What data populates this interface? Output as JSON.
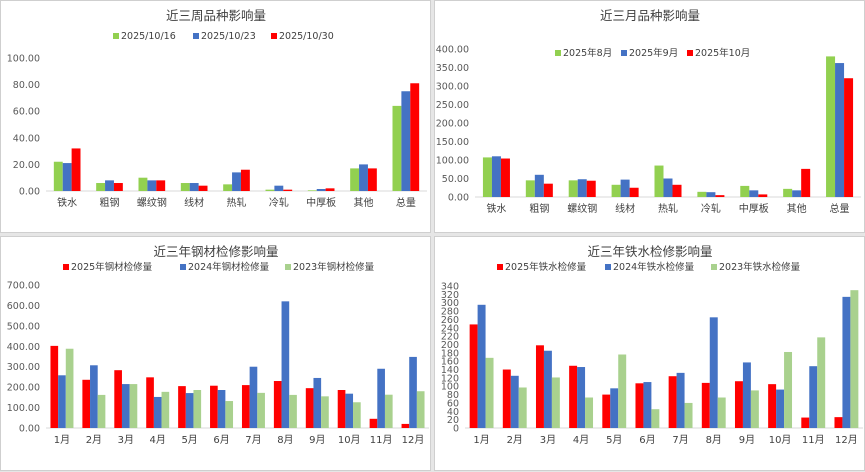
{
  "chart_data": [
    {
      "type": "bar",
      "title": "近三周品种影响量",
      "categories": [
        "铁水",
        "粗钢",
        "螺纹钢",
        "线材",
        "热轧",
        "冷轧",
        "中厚板",
        "其他",
        "总量"
      ],
      "series": [
        {
          "name": "2025/10/16",
          "color": "#92d050",
          "values": [
            22,
            6,
            10,
            6,
            5,
            1,
            0.5,
            17,
            64
          ]
        },
        {
          "name": "2025/10/23",
          "color": "#4472c4",
          "values": [
            21,
            8,
            8,
            6,
            14,
            4,
            1.5,
            20,
            75
          ]
        },
        {
          "name": "2025/10/30",
          "color": "#ff0000",
          "values": [
            32,
            6,
            8,
            4,
            16,
            1,
            2,
            17,
            81
          ]
        }
      ],
      "ylim": [
        0,
        100
      ],
      "yticks": [
        "0.00",
        "20.00",
        "40.00",
        "60.00",
        "80.00",
        "100.00"
      ],
      "legend": "top"
    },
    {
      "type": "bar",
      "title": "近三月品种影响量",
      "categories": [
        "铁水",
        "粗钢",
        "螺纹钢",
        "线材",
        "热轧",
        "冷轧",
        "中厚板",
        "其他",
        "总量"
      ],
      "series": [
        {
          "name": "2025年8月",
          "color": "#92d050",
          "values": [
            107,
            45,
            45,
            33,
            85,
            14,
            30,
            22,
            380
          ]
        },
        {
          "name": "2025年9月",
          "color": "#4472c4",
          "values": [
            110,
            60,
            48,
            47,
            50,
            13,
            18,
            18,
            362
          ]
        },
        {
          "name": "2025年10月",
          "color": "#ff0000",
          "values": [
            104,
            36,
            44,
            25,
            33,
            5,
            7,
            76,
            321
          ]
        }
      ],
      "ylim": [
        0,
        400
      ],
      "yticks": [
        "0.00",
        "50.00",
        "100.00",
        "150.00",
        "200.00",
        "250.00",
        "300.00",
        "350.00",
        "400.00"
      ],
      "legend": "top"
    },
    {
      "type": "bar",
      "title": "近三年钢材检修影响量",
      "categories": [
        "1月",
        "2月",
        "3月",
        "4月",
        "5月",
        "6月",
        "7月",
        "8月",
        "9月",
        "10月",
        "11月",
        "12月"
      ],
      "series": [
        {
          "name": "2025年钢材检修量",
          "color": "#ff0000",
          "values": [
            402,
            236,
            283,
            248,
            205,
            207,
            210,
            230,
            195,
            186,
            45,
            20
          ]
        },
        {
          "name": "2024年钢材检修量",
          "color": "#4472c4",
          "values": [
            258,
            307,
            215,
            152,
            171,
            186,
            300,
            620,
            245,
            168,
            290,
            348
          ]
        },
        {
          "name": "2023年钢材检修量",
          "color": "#a9d18e",
          "values": [
            388,
            162,
            215,
            177,
            186,
            132,
            172,
            162,
            155,
            126,
            163,
            180
          ]
        }
      ],
      "ylim": [
        0,
        700
      ],
      "yticks": [
        "0.00",
        "100.00",
        "200.00",
        "300.00",
        "400.00",
        "500.00",
        "600.00",
        "700.00"
      ],
      "legend": "top"
    },
    {
      "type": "bar",
      "title": "近三年铁水检修影响量",
      "categories": [
        "1月",
        "2月",
        "3月",
        "4月",
        "5月",
        "6月",
        "7月",
        "8月",
        "9月",
        "10月",
        "11月",
        "12月"
      ],
      "series": [
        {
          "name": "2025年铁水检修量",
          "color": "#ff0000",
          "values": [
            248,
            140,
            198,
            149,
            80,
            107,
            124,
            108,
            112,
            105,
            25,
            26
          ]
        },
        {
          "name": "2024年铁水检修量",
          "color": "#4472c4",
          "values": [
            295,
            125,
            185,
            146,
            95,
            110,
            132,
            265,
            157,
            92,
            148,
            314
          ]
        },
        {
          "name": "2023年铁水检修量",
          "color": "#a9d18e",
          "values": [
            168,
            97,
            121,
            73,
            176,
            45,
            60,
            73,
            90,
            182,
            217,
            330
          ]
        }
      ],
      "ylim": [
        0,
        340
      ],
      "yticks": [
        "0",
        "20",
        "40",
        "60",
        "80",
        "100",
        "120",
        "140",
        "160",
        "180",
        "200",
        "220",
        "240",
        "260",
        "280",
        "300",
        "320",
        "340"
      ],
      "legend": "top"
    }
  ]
}
